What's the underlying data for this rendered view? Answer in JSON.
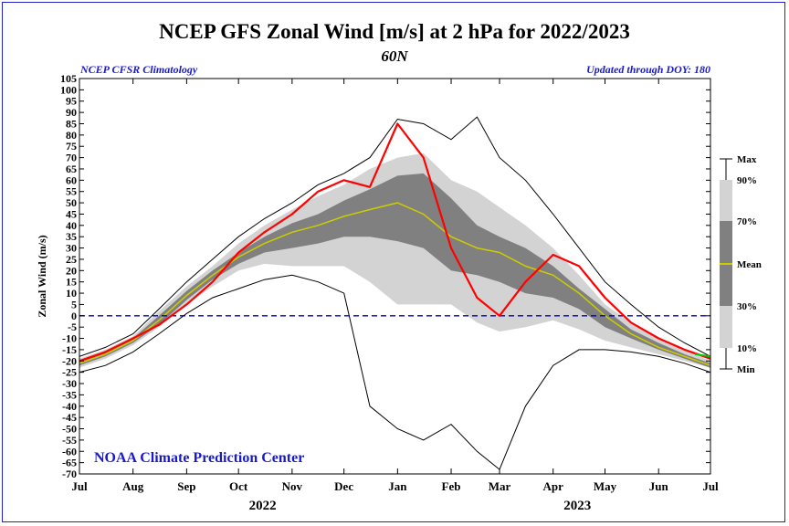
{
  "header": {
    "title": "NCEP GFS Zonal Wind [m/s] at 2 hPa for 2022/2023",
    "subtitle": "60N",
    "left_note": "NCEP CFSR Climatology",
    "right_note": "Updated through DOY: 180",
    "credit": "NOAA Climate Prediction Center"
  },
  "colors": {
    "frame": "#2222cc",
    "band_10_90": "#d3d3d3",
    "band_30_70": "#808080",
    "mean": "#cccc00",
    "current": "#ff0000",
    "forecast": "#00cc00",
    "envelope": "#000000",
    "zero_line": "#0000cc",
    "credit": "#1a1acc"
  },
  "chart_data": {
    "type": "area",
    "ylabel": "Zonal Wind (m/s)",
    "xlabel": "",
    "ylim": [
      -70,
      105
    ],
    "ytick_step": 5,
    "x_month_ticks": [
      "Jul",
      "Aug",
      "Sep",
      "Oct",
      "Nov",
      "Dec",
      "Jan",
      "Feb",
      "Mar",
      "Apr",
      "May",
      "Jun",
      "Jul"
    ],
    "year_labels": [
      "2022",
      "2023"
    ],
    "reference_line": 0,
    "legend_entries": [
      "Max",
      "90%",
      "70%",
      "Mean",
      "30%",
      "10%",
      "Min"
    ],
    "legend_placement": "right",
    "x_dates": [
      "2022-07-01",
      "2022-07-16",
      "2022-08-01",
      "2022-08-16",
      "2022-09-01",
      "2022-09-16",
      "2022-10-01",
      "2022-10-16",
      "2022-11-01",
      "2022-11-16",
      "2022-12-01",
      "2022-12-16",
      "2023-01-01",
      "2023-01-16",
      "2023-02-01",
      "2023-02-16",
      "2023-03-01",
      "2023-03-16",
      "2023-04-01",
      "2023-04-16",
      "2023-05-01",
      "2023-05-16",
      "2023-06-01",
      "2023-06-16",
      "2023-07-01"
    ],
    "series": [
      {
        "name": "Max",
        "values": [
          -18,
          -14,
          -8,
          3,
          15,
          25,
          35,
          43,
          50,
          58,
          63,
          70,
          87,
          85,
          78,
          88,
          70,
          60,
          45,
          30,
          15,
          5,
          -5,
          -12,
          -18
        ]
      },
      {
        "name": "90%",
        "values": [
          -19,
          -15,
          -9,
          2,
          13,
          22,
          32,
          40,
          47,
          53,
          58,
          65,
          70,
          72,
          60,
          55,
          48,
          40,
          30,
          18,
          5,
          -3,
          -10,
          -15,
          -20
        ]
      },
      {
        "name": "70%",
        "values": [
          -20,
          -16,
          -10,
          0,
          11,
          20,
          28,
          35,
          41,
          45,
          51,
          56,
          62,
          63,
          52,
          40,
          35,
          30,
          22,
          12,
          3,
          -6,
          -12,
          -17,
          -21
        ]
      },
      {
        "name": "Mean",
        "values": [
          -21,
          -17,
          -11,
          -2,
          9,
          18,
          26,
          32,
          37,
          40,
          44,
          47,
          50,
          45,
          35,
          30,
          28,
          22,
          18,
          10,
          0,
          -8,
          -14,
          -18,
          -22
        ]
      },
      {
        "name": "30%",
        "values": [
          -22,
          -18,
          -12,
          -4,
          7,
          16,
          23,
          28,
          30,
          32,
          35,
          35,
          33,
          30,
          20,
          18,
          15,
          10,
          8,
          3,
          -5,
          -10,
          -15,
          -19,
          -23
        ]
      },
      {
        "name": "10%",
        "values": [
          -23,
          -19,
          -13,
          -5,
          5,
          13,
          20,
          23,
          22,
          22,
          22,
          15,
          5,
          5,
          5,
          -3,
          -7,
          -5,
          -2,
          -6,
          -11,
          -14,
          -17,
          -20,
          -23
        ]
      },
      {
        "name": "Min",
        "values": [
          -25,
          -22,
          -16,
          -8,
          1,
          8,
          12,
          16,
          18,
          15,
          10,
          -40,
          -50,
          -55,
          -48,
          -60,
          -68,
          -40,
          -22,
          -15,
          -15,
          -16,
          -18,
          -21,
          -25
        ]
      },
      {
        "name": "2022/2023",
        "values": [
          -20,
          -16,
          -10,
          -4,
          5,
          15,
          28,
          37,
          45,
          55,
          60,
          57,
          85,
          70,
          30,
          8,
          0,
          15,
          27,
          22,
          8,
          -3,
          -10,
          -15,
          -19
        ]
      }
    ],
    "forecast_tail": {
      "x": [
        "2023-06-22",
        "2023-07-01"
      ],
      "values": [
        -17,
        -18
      ]
    }
  }
}
